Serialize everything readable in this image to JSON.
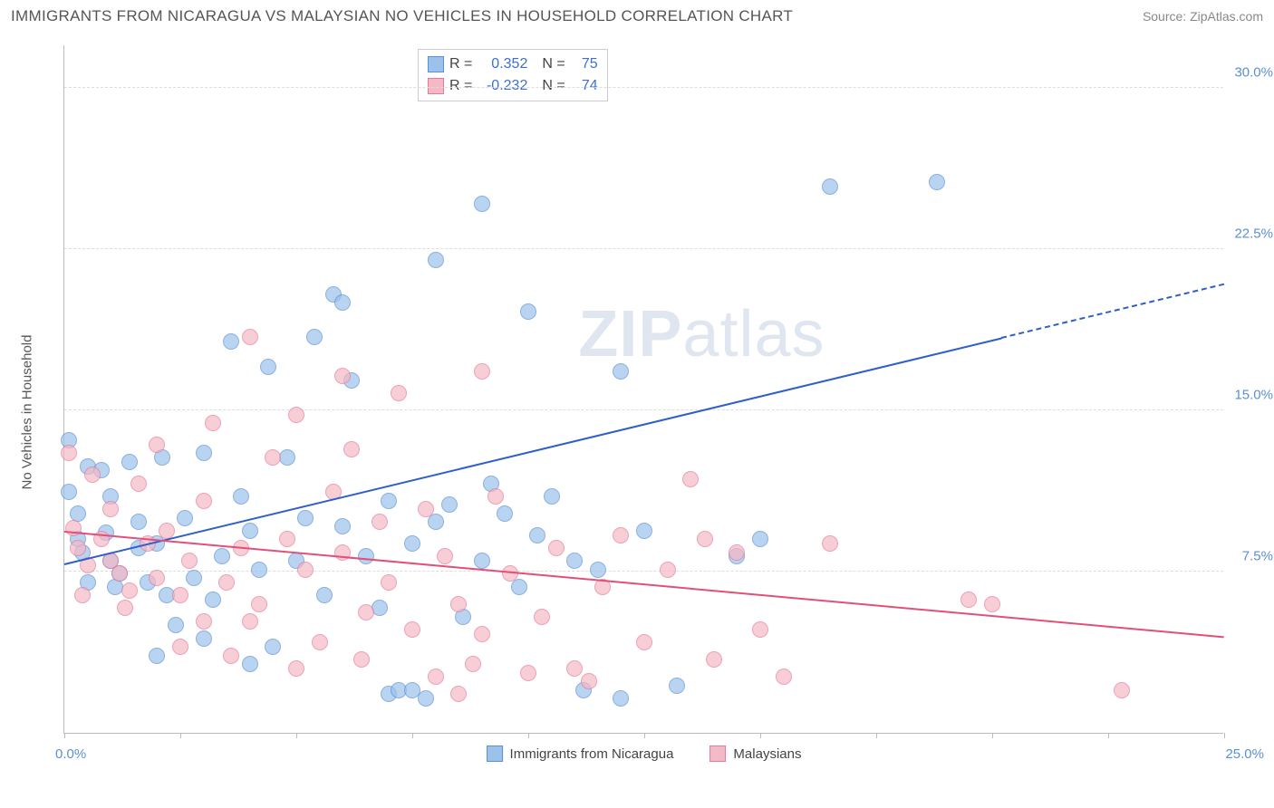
{
  "header": {
    "title": "IMMIGRANTS FROM NICARAGUA VS MALAYSIAN NO VEHICLES IN HOUSEHOLD CORRELATION CHART",
    "source_prefix": "Source: ",
    "source_link": "ZipAtlas.com"
  },
  "watermark": {
    "zip": "ZIP",
    "atlas": "atlas"
  },
  "chart": {
    "type": "scatter",
    "background_color": "#ffffff",
    "grid_color": "#dddddd",
    "axis_color": "#bbbbbb",
    "tick_label_color": "#5b8fd6",
    "ylabel": "No Vehicles in Household",
    "ylabel_fontsize": 15,
    "xlim": [
      0,
      25
    ],
    "ylim": [
      0,
      32
    ],
    "ytick_values": [
      7.5,
      15.0,
      22.5,
      30.0
    ],
    "ytick_labels": [
      "7.5%",
      "15.0%",
      "22.5%",
      "30.0%"
    ],
    "xtick_values": [
      0,
      2.5,
      5,
      7.5,
      10,
      12.5,
      15,
      17.5,
      20,
      22.5,
      25
    ],
    "xaxis_start_label": "0.0%",
    "xaxis_end_label": "25.0%",
    "marker_radius": 9,
    "marker_stroke_width": 1,
    "marker_fill_opacity": 0.35,
    "series": [
      {
        "id": "nicaragua",
        "label": "Immigrants from Nicaragua",
        "color_fill": "#9cc2ec",
        "color_stroke": "#5b8fd6",
        "r_value": "0.352",
        "n_value": "75",
        "regression": {
          "x1": 0,
          "y1": 7.8,
          "x2": 25,
          "y2": 20.8,
          "solid_until_x": 20.2,
          "color": "#2f5fc9",
          "width": 2
        },
        "points": [
          [
            0.1,
            11.2
          ],
          [
            0.1,
            13.6
          ],
          [
            0.3,
            10.2
          ],
          [
            0.3,
            9.0
          ],
          [
            0.4,
            8.4
          ],
          [
            0.5,
            7.0
          ],
          [
            0.5,
            12.4
          ],
          [
            0.8,
            12.2
          ],
          [
            0.9,
            9.3
          ],
          [
            1.0,
            8.0
          ],
          [
            1.0,
            11.0
          ],
          [
            1.1,
            6.8
          ],
          [
            1.2,
            7.4
          ],
          [
            1.4,
            12.6
          ],
          [
            1.6,
            9.8
          ],
          [
            1.6,
            8.6
          ],
          [
            1.8,
            7.0
          ],
          [
            2.0,
            8.8
          ],
          [
            2.1,
            12.8
          ],
          [
            2.2,
            6.4
          ],
          [
            2.4,
            5.0
          ],
          [
            2.6,
            10.0
          ],
          [
            2.8,
            7.2
          ],
          [
            3.0,
            4.4
          ],
          [
            3.0,
            13.0
          ],
          [
            3.2,
            6.2
          ],
          [
            3.4,
            8.2
          ],
          [
            3.6,
            18.2
          ],
          [
            3.8,
            11.0
          ],
          [
            4.0,
            9.4
          ],
          [
            4.2,
            7.6
          ],
          [
            4.4,
            17.0
          ],
          [
            4.5,
            4.0
          ],
          [
            4.8,
            12.8
          ],
          [
            5.0,
            8.0
          ],
          [
            5.2,
            10.0
          ],
          [
            5.4,
            18.4
          ],
          [
            5.6,
            6.4
          ],
          [
            5.8,
            20.4
          ],
          [
            6.0,
            20.0
          ],
          [
            6.0,
            9.6
          ],
          [
            6.2,
            16.4
          ],
          [
            6.5,
            8.2
          ],
          [
            6.8,
            5.8
          ],
          [
            7.0,
            10.8
          ],
          [
            7.0,
            1.8
          ],
          [
            7.2,
            2.0
          ],
          [
            7.5,
            8.8
          ],
          [
            7.5,
            2.0
          ],
          [
            8.0,
            22.0
          ],
          [
            8.0,
            9.8
          ],
          [
            8.3,
            10.6
          ],
          [
            8.6,
            5.4
          ],
          [
            9.0,
            24.6
          ],
          [
            9.0,
            8.0
          ],
          [
            9.2,
            11.6
          ],
          [
            9.5,
            10.2
          ],
          [
            9.8,
            6.8
          ],
          [
            10.0,
            19.6
          ],
          [
            10.2,
            9.2
          ],
          [
            10.5,
            11.0
          ],
          [
            11.0,
            8.0
          ],
          [
            11.2,
            2.0
          ],
          [
            11.5,
            7.6
          ],
          [
            12.0,
            16.8
          ],
          [
            12.0,
            1.6
          ],
          [
            12.5,
            9.4
          ],
          [
            13.2,
            2.2
          ],
          [
            14.5,
            8.2
          ],
          [
            15.0,
            9.0
          ],
          [
            16.5,
            25.4
          ],
          [
            18.8,
            25.6
          ],
          [
            7.8,
            1.6
          ],
          [
            2.0,
            3.6
          ],
          [
            4.0,
            3.2
          ]
        ]
      },
      {
        "id": "malaysians",
        "label": "Malaysians",
        "color_fill": "#f4b8c6",
        "color_stroke": "#e77a9a",
        "r_value": "-0.232",
        "n_value": "74",
        "regression": {
          "x1": 0,
          "y1": 9.3,
          "x2": 25,
          "y2": 4.4,
          "solid_until_x": 25,
          "color": "#e24f78",
          "width": 2
        },
        "points": [
          [
            0.1,
            13.0
          ],
          [
            0.2,
            9.5
          ],
          [
            0.3,
            8.6
          ],
          [
            0.5,
            7.8
          ],
          [
            0.6,
            12.0
          ],
          [
            0.8,
            9.0
          ],
          [
            1.0,
            10.4
          ],
          [
            1.0,
            8.0
          ],
          [
            1.2,
            7.4
          ],
          [
            1.4,
            6.6
          ],
          [
            1.6,
            11.6
          ],
          [
            1.8,
            8.8
          ],
          [
            2.0,
            7.2
          ],
          [
            2.0,
            13.4
          ],
          [
            2.2,
            9.4
          ],
          [
            2.5,
            6.4
          ],
          [
            2.7,
            8.0
          ],
          [
            3.0,
            10.8
          ],
          [
            3.0,
            5.2
          ],
          [
            3.2,
            14.4
          ],
          [
            3.5,
            7.0
          ],
          [
            3.8,
            8.6
          ],
          [
            4.0,
            18.4
          ],
          [
            4.2,
            6.0
          ],
          [
            4.5,
            12.8
          ],
          [
            4.8,
            9.0
          ],
          [
            5.0,
            14.8
          ],
          [
            5.2,
            7.6
          ],
          [
            5.5,
            4.2
          ],
          [
            5.8,
            11.2
          ],
          [
            6.0,
            8.4
          ],
          [
            6.2,
            13.2
          ],
          [
            6.0,
            16.6
          ],
          [
            6.5,
            5.6
          ],
          [
            6.8,
            9.8
          ],
          [
            7.0,
            7.0
          ],
          [
            7.2,
            15.8
          ],
          [
            7.5,
            4.8
          ],
          [
            7.8,
            10.4
          ],
          [
            8.0,
            2.6
          ],
          [
            8.2,
            8.2
          ],
          [
            8.5,
            6.0
          ],
          [
            8.8,
            3.2
          ],
          [
            9.0,
            16.8
          ],
          [
            9.3,
            11.0
          ],
          [
            9.6,
            7.4
          ],
          [
            10.0,
            2.8
          ],
          [
            10.3,
            5.4
          ],
          [
            10.6,
            8.6
          ],
          [
            11.0,
            3.0
          ],
          [
            11.3,
            2.4
          ],
          [
            11.6,
            6.8
          ],
          [
            12.0,
            9.2
          ],
          [
            12.5,
            4.2
          ],
          [
            13.0,
            7.6
          ],
          [
            13.5,
            11.8
          ],
          [
            13.8,
            9.0
          ],
          [
            14.0,
            3.4
          ],
          [
            14.5,
            8.4
          ],
          [
            15.0,
            4.8
          ],
          [
            15.5,
            2.6
          ],
          [
            16.5,
            8.8
          ],
          [
            19.5,
            6.2
          ],
          [
            22.8,
            2.0
          ],
          [
            20.0,
            6.0
          ],
          [
            8.5,
            1.8
          ],
          [
            2.5,
            4.0
          ],
          [
            1.3,
            5.8
          ],
          [
            0.4,
            6.4
          ],
          [
            3.6,
            3.6
          ],
          [
            5.0,
            3.0
          ],
          [
            6.4,
            3.4
          ],
          [
            9.0,
            4.6
          ],
          [
            4.0,
            5.2
          ]
        ]
      }
    ],
    "bottom_legend": [
      {
        "label": "Immigrants from Nicaragua",
        "fill": "#9cc2ec",
        "stroke": "#5b8fd6"
      },
      {
        "label": "Malaysians",
        "fill": "#f4b8c6",
        "stroke": "#e77a9a"
      }
    ],
    "stats_legend": {
      "r_label": "R",
      "n_label": "N",
      "eq": "="
    }
  }
}
